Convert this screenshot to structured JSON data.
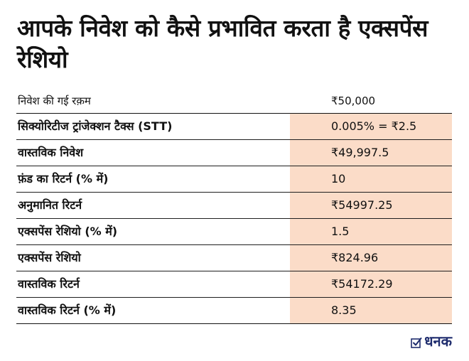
{
  "title": "आपके निवेश को कैसे प्रभावित करता है एक्सपेंस रेशियो",
  "header": {
    "label": "निवेश की गई रक़म",
    "value": "₹50,000"
  },
  "rows": [
    {
      "label": "सिक्योरिटीज ट्रांजेक्शन टैक्स (STT)",
      "value": "0.005% = ₹2.5"
    },
    {
      "label": "वास्तविक निवेश",
      "value": "₹49,997.5"
    },
    {
      "label": "फ़ंड का रिटर्न (% में)",
      "value": "10"
    },
    {
      "label": "अनुमानित रिटर्न",
      "value": "₹54997.25"
    },
    {
      "label": "एक्सपेंस रेशियो (% में)",
      "value": "1.5"
    },
    {
      "label": "एक्सपेंस रेशियो",
      "value": "₹824.96"
    },
    {
      "label": "वास्तविक रिटर्न",
      "value": "₹54172.29"
    },
    {
      "label": "वास्तविक रिटर्न (% में)",
      "value": "8.35"
    }
  ],
  "logo": {
    "text": "धनक",
    "icon": "checkbox-icon"
  },
  "colors": {
    "highlight": "#fbdcc8",
    "brand": "#1f2d6e",
    "text": "#111111"
  }
}
